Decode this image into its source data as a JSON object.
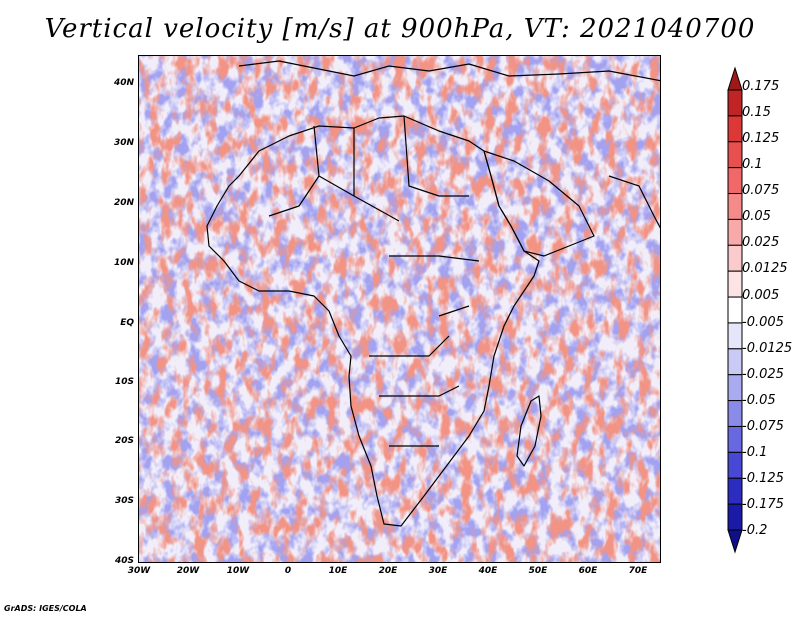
{
  "title": "Vertical velocity [m/s] at 900hPa, VT: 2021040700",
  "credit": "GrADS: IGES/COLA",
  "map": {
    "lat_labels": [
      "40N",
      "30N",
      "20N",
      "10N",
      "EQ",
      "10S",
      "20S",
      "30S",
      "40S"
    ],
    "lon_labels": [
      "30W",
      "20W",
      "10W",
      "0",
      "10E",
      "20E",
      "30E",
      "40E",
      "50E",
      "60E",
      "70E"
    ],
    "lon_range": [
      -30,
      75
    ],
    "lat_range": [
      -40,
      45
    ],
    "field_colors": {
      "positive": "#e34a3a",
      "negative": "#5a5ae0",
      "neutral": "#ffffff"
    }
  },
  "colorbar": {
    "levels": [
      "0.175",
      "0.15",
      "0.125",
      "0.1",
      "0.075",
      "0.05",
      "0.025",
      "0.0125",
      "0.005",
      "-0.005",
      "-0.0125",
      "-0.025",
      "-0.05",
      "-0.075",
      "-0.1",
      "-0.125",
      "-0.175",
      "-0.2"
    ],
    "colors": [
      "#a01818",
      "#c02424",
      "#dc3838",
      "#e85050",
      "#f06868",
      "#f48a8a",
      "#f8aaaa",
      "#fbcaca",
      "#fde4e4",
      "#ffffff",
      "#e6e6fb",
      "#cacaf6",
      "#aaaaf0",
      "#8a8ae8",
      "#6868e0",
      "#4848d4",
      "#2c2cc0",
      "#1a1aa6",
      "#100f8a"
    ]
  }
}
